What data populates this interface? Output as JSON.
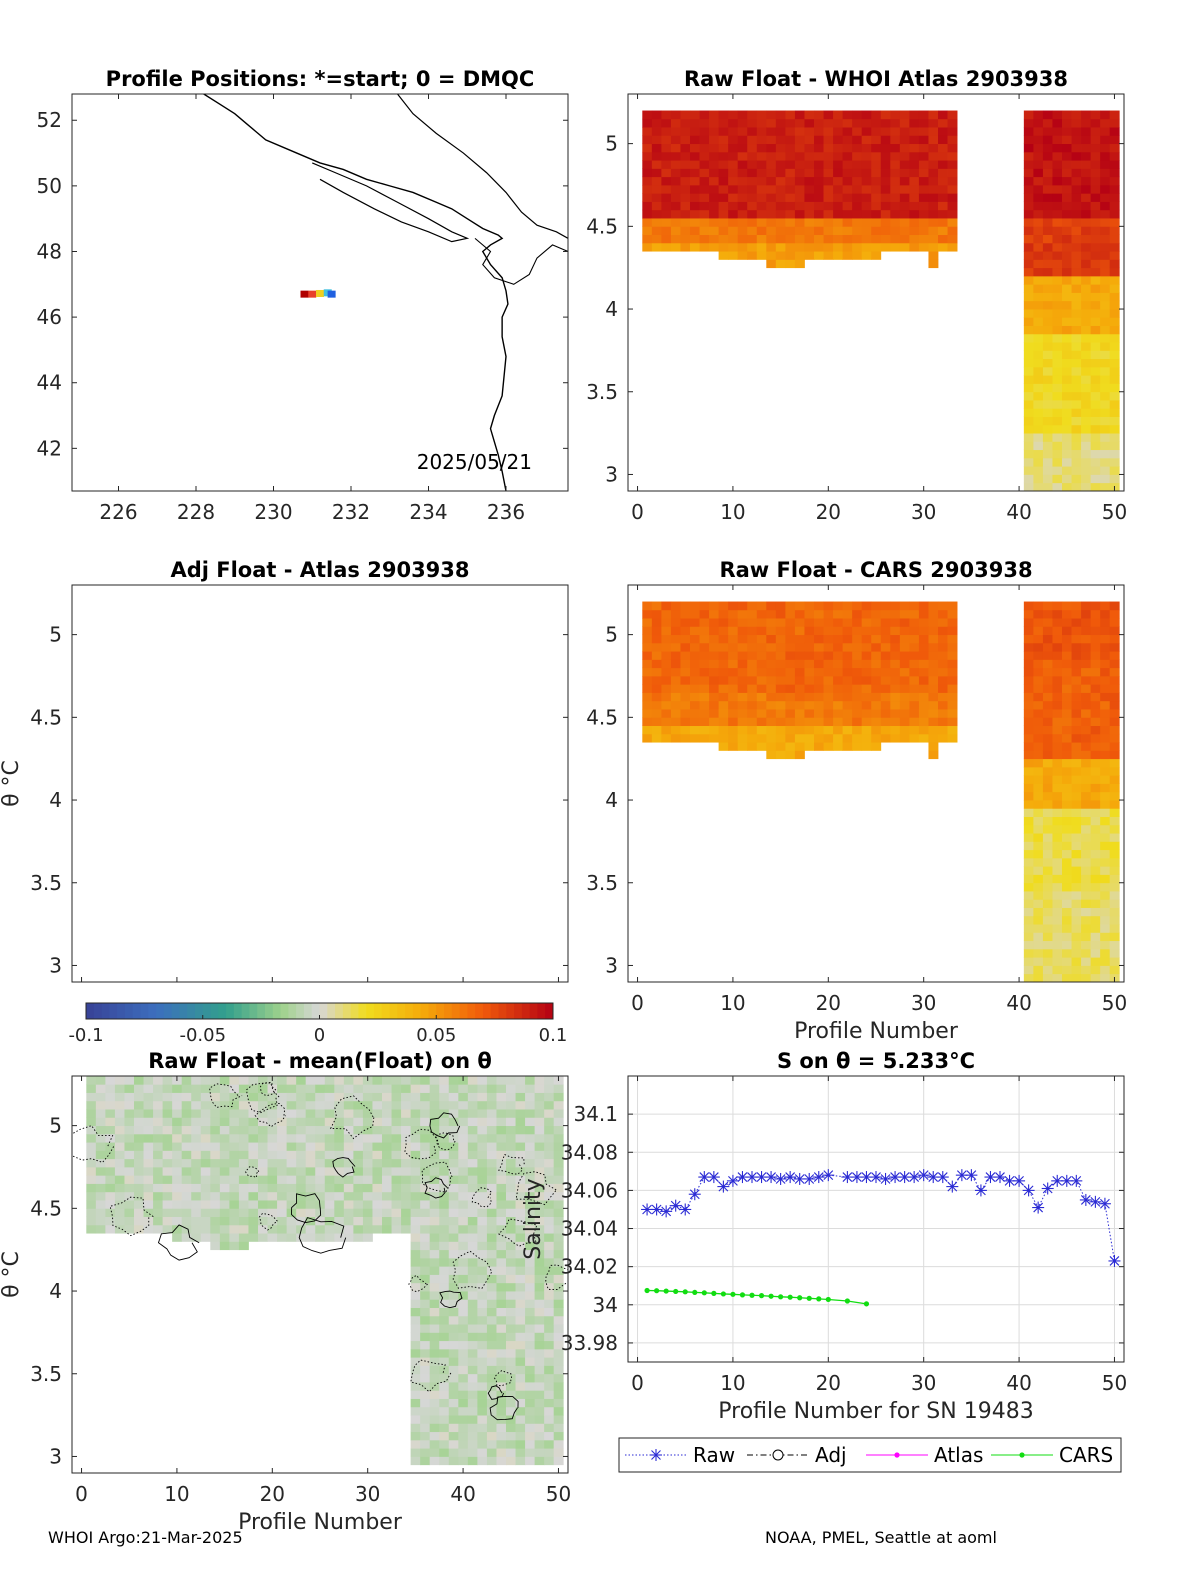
{
  "footer": {
    "left": "WHOI Argo:21-Mar-2025",
    "right": "NOAA, PMEL, Seattle at aoml"
  },
  "colorbar": {
    "ticks": [
      "-0.1",
      "-0.05",
      "0",
      "0.05",
      "0.1"
    ],
    "range": [
      -0.1,
      0.1
    ]
  },
  "chart_data": [
    {
      "id": "map",
      "type": "scatter",
      "title": "Profile Positions: *=start; 0 = DMQC",
      "x_ticks": [
        "226",
        "228",
        "230",
        "232",
        "234",
        "236"
      ],
      "y_ticks": [
        "42",
        "44",
        "46",
        "48",
        "50",
        "52"
      ],
      "xlim": [
        224.8,
        237.6
      ],
      "ylim": [
        40.7,
        52.8
      ],
      "annotation": "2025/05/21",
      "x": [
        230.8,
        231.0,
        231.2,
        231.4,
        231.5
      ],
      "y": [
        46.7,
        46.7,
        46.72,
        46.74,
        46.7
      ],
      "colors": [
        "#b00000",
        "#e8402a",
        "#f0d020",
        "#40c0e0",
        "#2060e0"
      ]
    },
    {
      "id": "raw-whoi",
      "type": "heatmap",
      "title": "Raw Float - WHOI Atlas  2903938",
      "x_ticks": [
        "0",
        "10",
        "20",
        "30",
        "40",
        "50"
      ],
      "y_ticks": [
        "3",
        "3.5",
        "4",
        "4.5",
        "5"
      ],
      "xlim": [
        -1,
        51
      ],
      "ylim": [
        2.9,
        5.3
      ]
    },
    {
      "id": "adj-atlas",
      "type": "heatmap",
      "title": "Adj Float - Atlas  2903938",
      "ylabel": "θ °C",
      "x_ticks": [],
      "y_ticks": [
        "3",
        "3.5",
        "4",
        "4.5",
        "5"
      ],
      "xlim": [
        -1,
        51
      ],
      "ylim": [
        2.9,
        5.3
      ]
    },
    {
      "id": "raw-cars",
      "type": "heatmap",
      "title": "Raw Float - CARS  2903938",
      "xlabel": "Profile Number",
      "x_ticks": [
        "0",
        "10",
        "20",
        "30",
        "40",
        "50"
      ],
      "y_ticks": [
        "3",
        "3.5",
        "4",
        "4.5",
        "5"
      ],
      "xlim": [
        -1,
        51
      ],
      "ylim": [
        2.9,
        5.3
      ]
    },
    {
      "id": "raw-mean",
      "type": "heatmap",
      "title": "Raw Float - mean(Float) on θ",
      "xlabel": "Profile Number",
      "ylabel": "θ °C",
      "x_ticks": [
        "0",
        "10",
        "20",
        "30",
        "40",
        "50"
      ],
      "y_ticks": [
        "3",
        "3.5",
        "4",
        "4.5",
        "5"
      ],
      "xlim": [
        -1,
        51
      ],
      "ylim": [
        2.9,
        5.3
      ]
    },
    {
      "id": "salinity",
      "type": "line",
      "title": "S on θ = 5.233°C",
      "xlabel": "Profile Number for SN 19483",
      "ylabel": "Salinity",
      "x_ticks": [
        "0",
        "10",
        "20",
        "30",
        "40",
        "50"
      ],
      "y_ticks": [
        "33.98",
        "34",
        "34.02",
        "34.04",
        "34.06",
        "34.08",
        "34.1"
      ],
      "xlim": [
        -1,
        51
      ],
      "ylim": [
        33.97,
        34.12
      ],
      "legend": [
        "Raw",
        "Adj",
        "Atlas",
        "CARS"
      ],
      "series": [
        {
          "name": "Raw",
          "color": "#2a2ad4",
          "x": [
            1,
            2,
            3,
            4,
            5,
            6,
            7,
            8,
            9,
            10,
            11,
            12,
            13,
            14,
            15,
            16,
            17,
            18,
            19,
            20,
            22,
            23,
            24,
            25,
            26,
            27,
            28,
            29,
            30,
            31,
            32,
            33,
            34,
            35,
            36,
            37,
            38,
            39,
            40,
            41,
            42,
            43,
            44,
            45,
            46,
            47,
            48,
            49,
            50
          ],
          "y": [
            34.05,
            34.05,
            34.049,
            34.052,
            34.05,
            34.058,
            34.067,
            34.067,
            34.062,
            34.065,
            34.067,
            34.067,
            34.067,
            34.067,
            34.066,
            34.067,
            34.066,
            34.066,
            34.067,
            34.068,
            34.067,
            34.067,
            34.067,
            34.067,
            34.066,
            34.067,
            34.067,
            34.067,
            34.068,
            34.067,
            34.067,
            34.062,
            34.068,
            34.068,
            34.06,
            34.067,
            34.067,
            34.065,
            34.065,
            34.06,
            34.051,
            34.061,
            34.065,
            34.065,
            34.065,
            34.055,
            34.054,
            34.053,
            34.023
          ]
        },
        {
          "name": "CARS",
          "color": "#11dd11",
          "x": [
            1,
            2,
            3,
            4,
            5,
            6,
            7,
            8,
            9,
            10,
            11,
            12,
            13,
            14,
            15,
            16,
            17,
            18,
            19,
            20,
            22,
            24
          ],
          "y": [
            34.0075,
            34.0074,
            34.0072,
            34.007,
            34.0068,
            34.0065,
            34.0063,
            34.006,
            34.0057,
            34.0055,
            34.0052,
            34.005,
            34.0048,
            34.0045,
            34.0042,
            34.004,
            34.0037,
            34.0034,
            34.0031,
            34.0028,
            34.002,
            34.0005
          ]
        }
      ]
    }
  ]
}
